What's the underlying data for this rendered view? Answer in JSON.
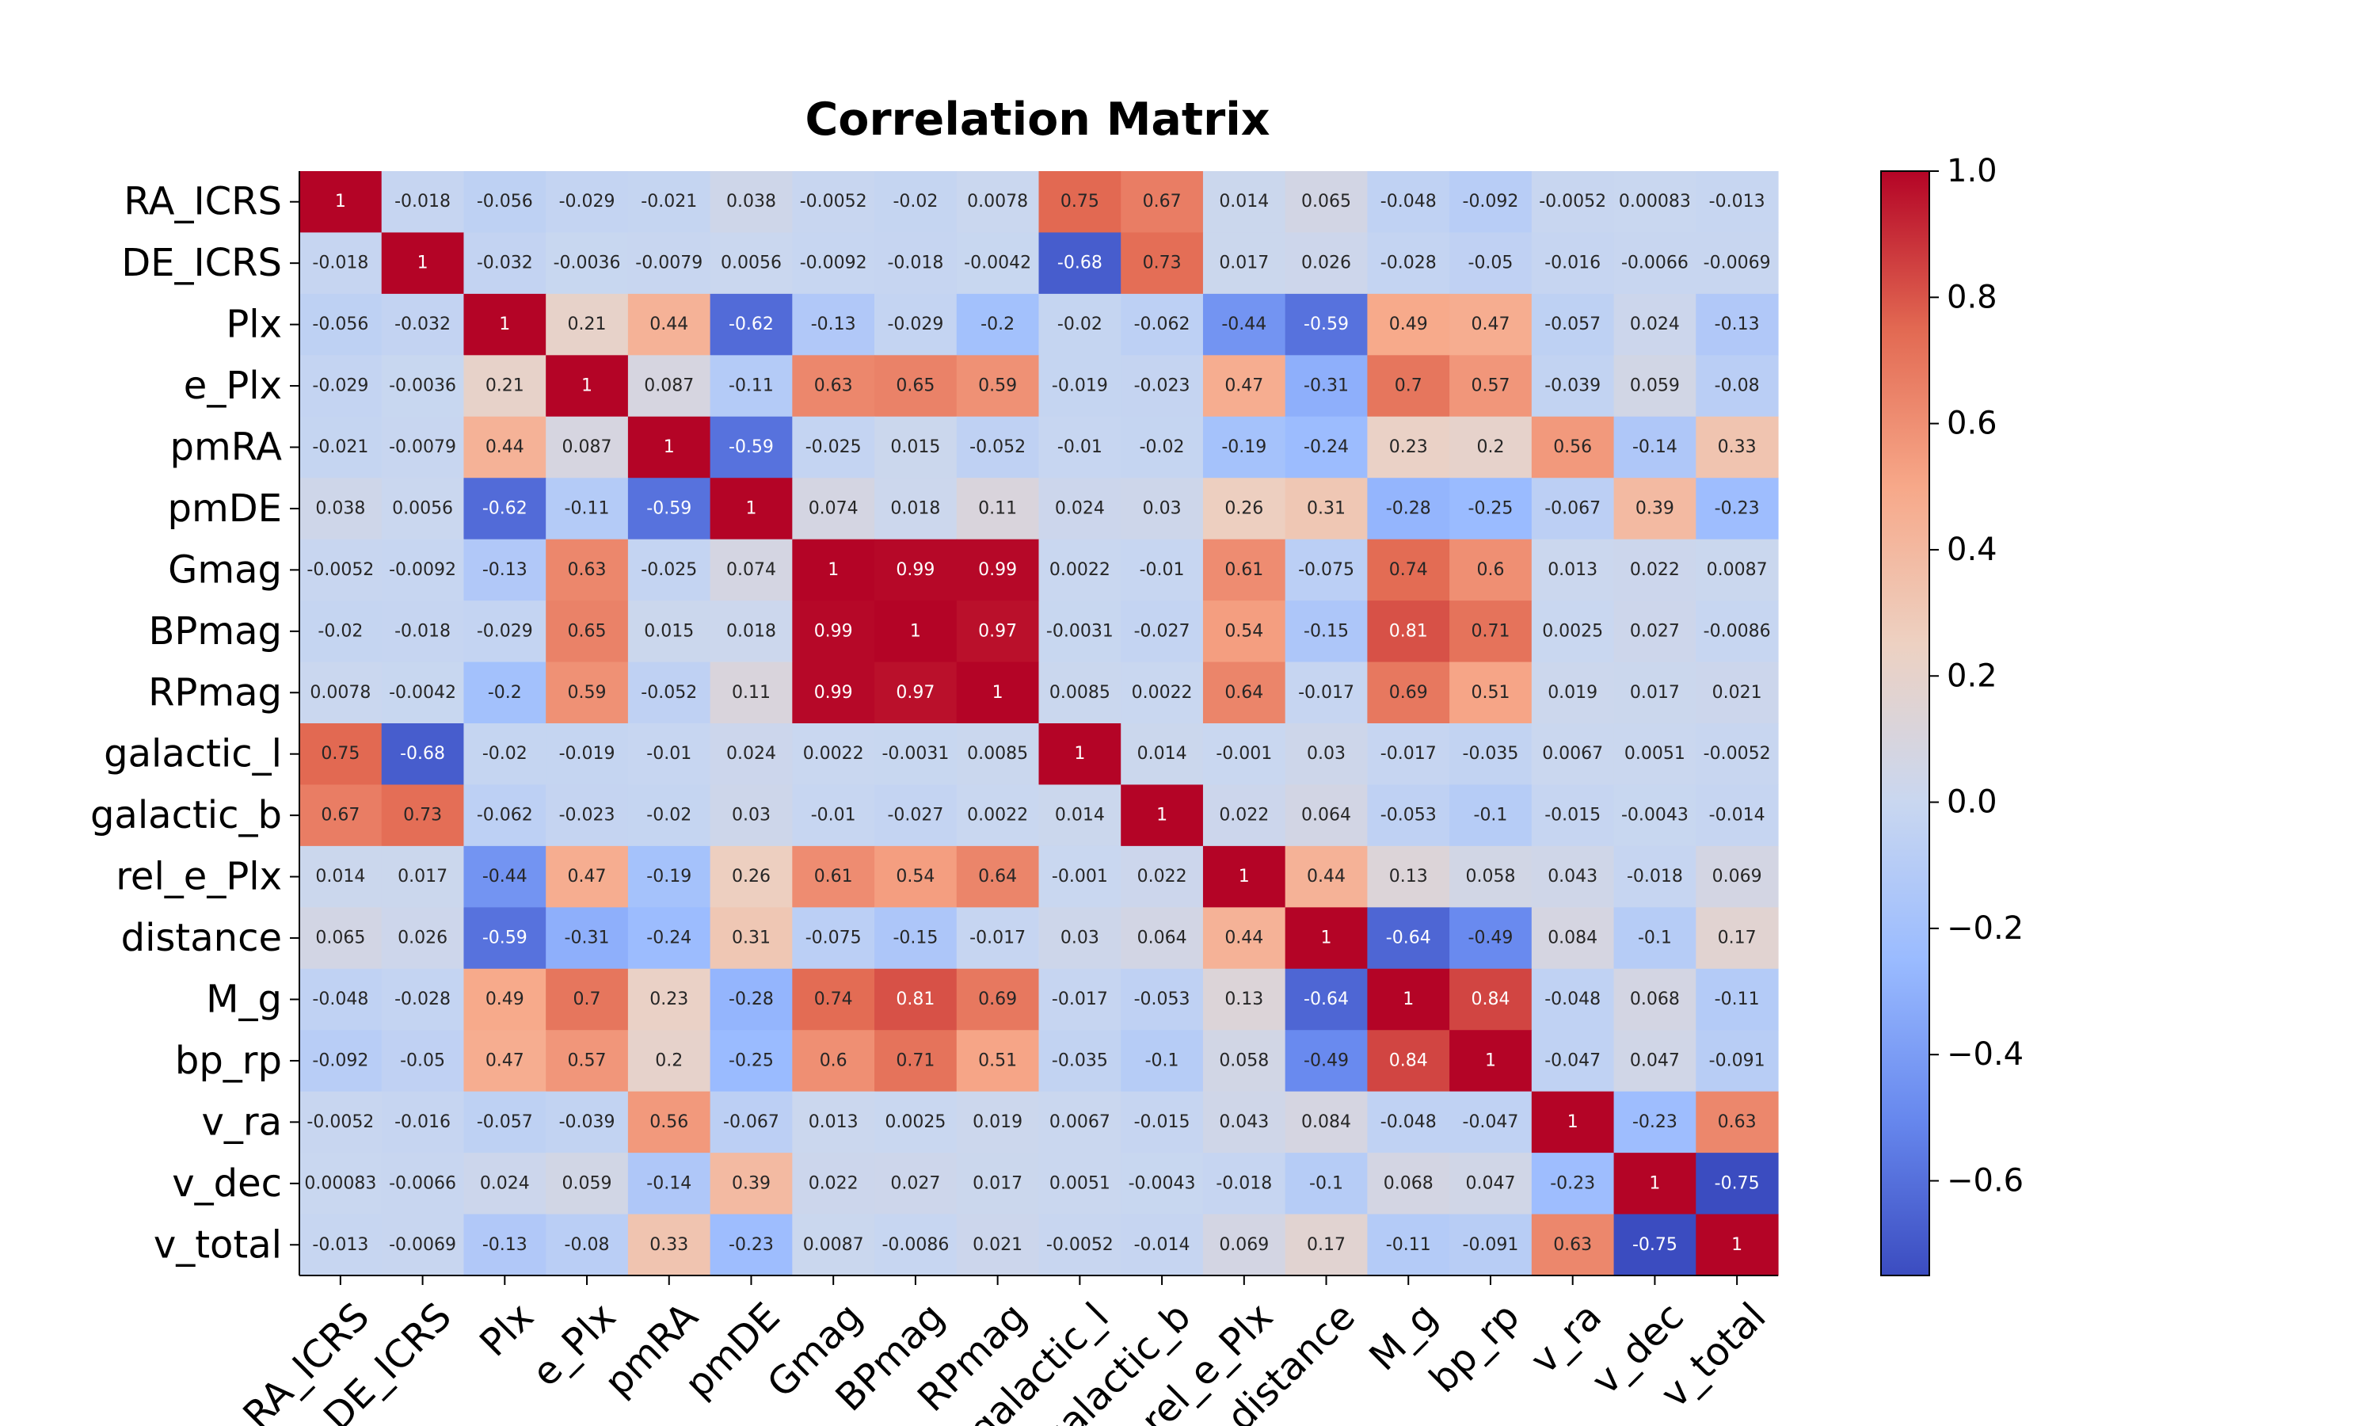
{
  "chart_data": {
    "type": "heatmap",
    "title": "Correlation Matrix",
    "variables": [
      "RA_ICRS",
      "DE_ICRS",
      "Plx",
      "e_Plx",
      "pmRA",
      "pmDE",
      "Gmag",
      "BPmag",
      "RPmag",
      "galactic_l",
      "galactic_b",
      "rel_e_Plx",
      "distance",
      "M_g",
      "bp_rp",
      "v_ra",
      "v_dec",
      "v_total"
    ],
    "values": [
      [
        1,
        -0.018,
        -0.056,
        -0.029,
        -0.021,
        0.038,
        -0.0052,
        -0.02,
        0.0078,
        0.75,
        0.67,
        0.014,
        0.065,
        -0.048,
        -0.092,
        -0.0052,
        0.00083,
        -0.013
      ],
      [
        -0.018,
        1,
        -0.032,
        -0.0036,
        -0.0079,
        0.0056,
        -0.0092,
        -0.018,
        -0.0042,
        -0.68,
        0.73,
        0.017,
        0.026,
        -0.028,
        -0.05,
        -0.016,
        -0.0066,
        -0.0069
      ],
      [
        -0.056,
        -0.032,
        1,
        0.21,
        0.44,
        -0.62,
        -0.13,
        -0.029,
        -0.2,
        -0.02,
        -0.062,
        -0.44,
        -0.59,
        0.49,
        0.47,
        -0.057,
        0.024,
        -0.13
      ],
      [
        -0.029,
        -0.0036,
        0.21,
        1,
        0.087,
        -0.11,
        0.63,
        0.65,
        0.59,
        -0.019,
        -0.023,
        0.47,
        -0.31,
        0.7,
        0.57,
        -0.039,
        0.059,
        -0.08
      ],
      [
        -0.021,
        -0.0079,
        0.44,
        0.087,
        1,
        -0.59,
        -0.025,
        0.015,
        -0.052,
        -0.01,
        -0.02,
        -0.19,
        -0.24,
        0.23,
        0.2,
        0.56,
        -0.14,
        0.33
      ],
      [
        0.038,
        0.0056,
        -0.62,
        -0.11,
        -0.59,
        1,
        0.074,
        0.018,
        0.11,
        0.024,
        0.03,
        0.26,
        0.31,
        -0.28,
        -0.25,
        -0.067,
        0.39,
        -0.23
      ],
      [
        -0.0052,
        -0.0092,
        -0.13,
        0.63,
        -0.025,
        0.074,
        1,
        0.99,
        0.99,
        0.0022,
        -0.01,
        0.61,
        -0.075,
        0.74,
        0.6,
        0.013,
        0.022,
        0.0087
      ],
      [
        -0.02,
        -0.018,
        -0.029,
        0.65,
        0.015,
        0.018,
        0.99,
        1,
        0.97,
        -0.0031,
        -0.027,
        0.54,
        -0.15,
        0.81,
        0.71,
        0.0025,
        0.027,
        -0.0086
      ],
      [
        0.0078,
        -0.0042,
        -0.2,
        0.59,
        -0.052,
        0.11,
        0.99,
        0.97,
        1,
        0.0085,
        0.0022,
        0.64,
        -0.017,
        0.69,
        0.51,
        0.019,
        0.017,
        0.021
      ],
      [
        0.75,
        -0.68,
        -0.02,
        -0.019,
        -0.01,
        0.024,
        0.0022,
        -0.0031,
        0.0085,
        1,
        0.014,
        -0.001,
        0.03,
        -0.017,
        -0.035,
        0.0067,
        0.0051,
        -0.0052
      ],
      [
        0.67,
        0.73,
        -0.062,
        -0.023,
        -0.02,
        0.03,
        -0.01,
        -0.027,
        0.0022,
        0.014,
        1,
        0.022,
        0.064,
        -0.053,
        -0.1,
        -0.015,
        -0.0043,
        -0.014
      ],
      [
        0.014,
        0.017,
        -0.44,
        0.47,
        -0.19,
        0.26,
        0.61,
        0.54,
        0.64,
        -0.001,
        0.022,
        1,
        0.44,
        0.13,
        0.058,
        0.043,
        -0.018,
        0.069
      ],
      [
        0.065,
        0.026,
        -0.59,
        -0.31,
        -0.24,
        0.31,
        -0.075,
        -0.15,
        -0.017,
        0.03,
        0.064,
        0.44,
        1,
        -0.64,
        -0.49,
        0.084,
        -0.1,
        0.17
      ],
      [
        -0.048,
        -0.028,
        0.49,
        0.7,
        0.23,
        -0.28,
        0.74,
        0.81,
        0.69,
        -0.017,
        -0.053,
        0.13,
        -0.64,
        1,
        0.84,
        -0.048,
        0.068,
        -0.11
      ],
      [
        -0.092,
        -0.05,
        0.47,
        0.57,
        0.2,
        -0.25,
        0.6,
        0.71,
        0.51,
        -0.035,
        -0.1,
        0.058,
        -0.49,
        0.84,
        1,
        -0.047,
        0.047,
        -0.091
      ],
      [
        -0.0052,
        -0.016,
        -0.057,
        -0.039,
        0.56,
        -0.067,
        0.013,
        0.0025,
        0.019,
        0.0067,
        -0.015,
        0.043,
        0.084,
        -0.048,
        -0.047,
        1,
        -0.23,
        0.63
      ],
      [
        0.00083,
        -0.0066,
        0.024,
        0.059,
        -0.14,
        0.39,
        0.022,
        0.027,
        0.017,
        0.0051,
        -0.0043,
        -0.018,
        -0.1,
        0.068,
        0.047,
        -0.23,
        1,
        -0.75
      ],
      [
        -0.013,
        -0.0069,
        -0.13,
        -0.08,
        0.33,
        -0.23,
        0.0087,
        -0.0086,
        0.021,
        -0.0052,
        -0.014,
        0.069,
        0.17,
        -0.11,
        -0.091,
        0.63,
        -0.75,
        1
      ]
    ],
    "annotation_labels": [
      [
        "1",
        "-0.018",
        "-0.056",
        "-0.029",
        "-0.021",
        "0.038",
        "-0.0052",
        "-0.02",
        "0.0078",
        "0.75",
        "0.67",
        "0.014",
        "0.065",
        "-0.048",
        "-0.092",
        "-0.0052",
        "0.00083",
        "-0.013"
      ],
      [
        "-0.018",
        "1",
        "-0.032",
        "-0.0036",
        "-0.0079",
        "0.0056",
        "-0.0092",
        "-0.018",
        "-0.0042",
        "-0.68",
        "0.73",
        "0.017",
        "0.026",
        "-0.028",
        "-0.05",
        "-0.016",
        "-0.0066",
        "-0.0069"
      ],
      [
        "-0.056",
        "-0.032",
        "1",
        "0.21",
        "0.44",
        "-0.62",
        "-0.13",
        "-0.029",
        "-0.2",
        "-0.02",
        "-0.062",
        "-0.44",
        "-0.59",
        "0.49",
        "0.47",
        "-0.057",
        "0.024",
        "-0.13"
      ],
      [
        "-0.029",
        "-0.0036",
        "0.21",
        "1",
        "0.087",
        "-0.11",
        "0.63",
        "0.65",
        "0.59",
        "-0.019",
        "-0.023",
        "0.47",
        "-0.31",
        "0.7",
        "0.57",
        "-0.039",
        "0.059",
        "-0.08"
      ],
      [
        "-0.021",
        "-0.0079",
        "0.44",
        "0.087",
        "1",
        "-0.59",
        "-0.025",
        "0.015",
        "-0.052",
        "-0.01",
        "-0.02",
        "-0.19",
        "-0.24",
        "0.23",
        "0.2",
        "0.56",
        "-0.14",
        "0.33"
      ],
      [
        "0.038",
        "0.0056",
        "-0.62",
        "-0.11",
        "-0.59",
        "1",
        "0.074",
        "0.018",
        "0.11",
        "0.024",
        "0.03",
        "0.26",
        "0.31",
        "-0.28",
        "-0.25",
        "-0.067",
        "0.39",
        "-0.23"
      ],
      [
        "-0.0052",
        "-0.0092",
        "-0.13",
        "0.63",
        "-0.025",
        "0.074",
        "1",
        "0.99",
        "0.99",
        "0.0022",
        "-0.01",
        "0.61",
        "-0.075",
        "0.74",
        "0.6",
        "0.013",
        "0.022",
        "0.0087"
      ],
      [
        "-0.02",
        "-0.018",
        "-0.029",
        "0.65",
        "0.015",
        "0.018",
        "0.99",
        "1",
        "0.97",
        "-0.0031",
        "-0.027",
        "0.54",
        "-0.15",
        "0.81",
        "0.71",
        "0.0025",
        "0.027",
        "-0.0086"
      ],
      [
        "0.0078",
        "-0.0042",
        "-0.2",
        "0.59",
        "-0.052",
        "0.11",
        "0.99",
        "0.97",
        "1",
        "0.0085",
        "0.0022",
        "0.64",
        "-0.017",
        "0.69",
        "0.51",
        "0.019",
        "0.017",
        "0.021"
      ],
      [
        "0.75",
        "-0.68",
        "-0.02",
        "-0.019",
        "-0.01",
        "0.024",
        "0.0022",
        "-0.0031",
        "0.0085",
        "1",
        "0.014",
        "-0.001",
        "0.03",
        "-0.017",
        "-0.035",
        "0.0067",
        "0.0051",
        "-0.0052"
      ],
      [
        "0.67",
        "0.73",
        "-0.062",
        "-0.023",
        "-0.02",
        "0.03",
        "-0.01",
        "-0.027",
        "0.0022",
        "0.014",
        "1",
        "0.022",
        "0.064",
        "-0.053",
        "-0.1",
        "-0.015",
        "-0.0043",
        "-0.014"
      ],
      [
        "0.014",
        "0.017",
        "-0.44",
        "0.47",
        "-0.19",
        "0.26",
        "0.61",
        "0.54",
        "0.64",
        "-0.001",
        "0.022",
        "1",
        "0.44",
        "0.13",
        "0.058",
        "0.043",
        "-0.018",
        "0.069"
      ],
      [
        "0.065",
        "0.026",
        "-0.59",
        "-0.31",
        "-0.24",
        "0.31",
        "-0.075",
        "-0.15",
        "-0.017",
        "0.03",
        "0.064",
        "0.44",
        "1",
        "-0.64",
        "-0.49",
        "0.084",
        "-0.1",
        "0.17"
      ],
      [
        "-0.048",
        "-0.028",
        "0.49",
        "0.7",
        "0.23",
        "-0.28",
        "0.74",
        "0.81",
        "0.69",
        "-0.017",
        "-0.053",
        "0.13",
        "-0.64",
        "1",
        "0.84",
        "-0.048",
        "0.068",
        "-0.11"
      ],
      [
        "-0.092",
        "-0.05",
        "0.47",
        "0.57",
        "0.2",
        "-0.25",
        "0.6",
        "0.71",
        "0.51",
        "-0.035",
        "-0.1",
        "0.058",
        "-0.49",
        "0.84",
        "1",
        "-0.047",
        "0.047",
        "-0.091"
      ],
      [
        "-0.0052",
        "-0.016",
        "-0.057",
        "-0.039",
        "0.56",
        "-0.067",
        "0.013",
        "0.0025",
        "0.019",
        "0.0067",
        "-0.015",
        "0.043",
        "0.084",
        "-0.048",
        "-0.047",
        "1",
        "-0.23",
        "0.63"
      ],
      [
        "0.00083",
        "-0.0066",
        "0.024",
        "0.059",
        "-0.14",
        "0.39",
        "0.022",
        "0.027",
        "0.017",
        "0.0051",
        "-0.0043",
        "-0.018",
        "-0.1",
        "0.068",
        "0.047",
        "-0.23",
        "1",
        "-0.75"
      ],
      [
        "-0.013",
        "-0.0069",
        "-0.13",
        "-0.08",
        "0.33",
        "-0.23",
        "0.0087",
        "-0.0086",
        "0.021",
        "-0.0052",
        "-0.014",
        "0.069",
        "0.17",
        "-0.11",
        "-0.091",
        "0.63",
        "-0.75",
        "1"
      ]
    ],
    "colormap": "coolwarm",
    "colormap_stops": [
      "#3b4cc0",
      "#6788ee",
      "#9abbff",
      "#c9d7f0",
      "#edd1c2",
      "#f7a889",
      "#e26952",
      "#b40426"
    ],
    "vmin": -0.75,
    "vmax": 1.0,
    "colorbar": {
      "ticks": [
        1.0,
        0.8,
        0.6,
        0.4,
        0.2,
        0.0,
        -0.2,
        -0.4,
        -0.6
      ],
      "tick_labels": [
        "1.0",
        "0.8",
        "0.6",
        "0.4",
        "0.2",
        "0.0",
        "−0.2",
        "−0.4",
        "−0.6"
      ],
      "placement": "right"
    },
    "annotation_text_colors": {
      "light": "#ffffff",
      "dark": "#262626"
    }
  }
}
